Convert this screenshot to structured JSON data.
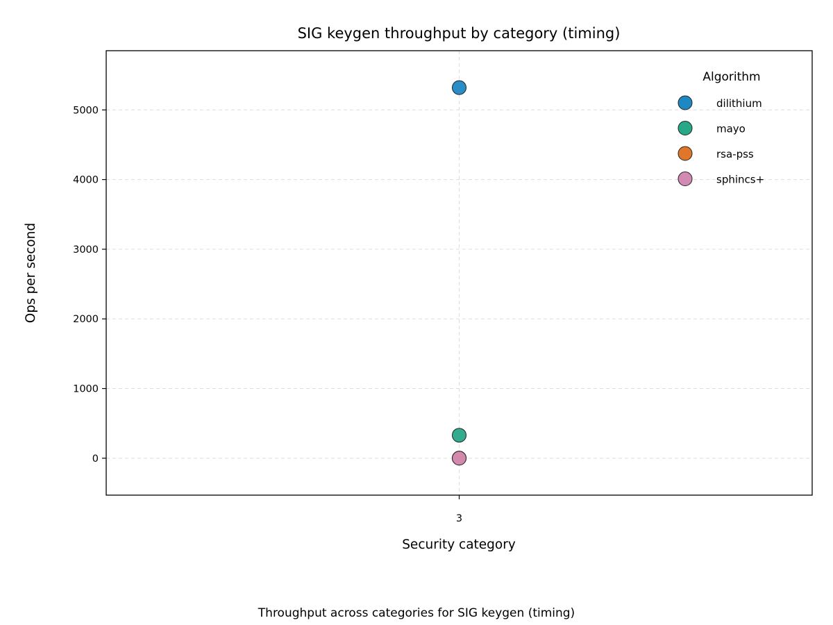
{
  "chart_data": {
    "type": "scatter",
    "title": "SIG keygen throughput by category (timing)",
    "xlabel": "Security category",
    "ylabel": "Ops per second",
    "caption": "Throughput across categories for SIG keygen (timing)",
    "categories": [
      "3"
    ],
    "ylim": [
      -530,
      5850
    ],
    "yticks": [
      0,
      1000,
      2000,
      3000,
      4000,
      5000
    ],
    "grid": true,
    "legend": {
      "title": "Algorithm",
      "placement": "top-right"
    },
    "series": [
      {
        "name": "dilithium",
        "color": "#1f88c3",
        "points": [
          {
            "x": "3",
            "y": 5320
          }
        ]
      },
      {
        "name": "mayo",
        "color": "#27a887",
        "points": [
          {
            "x": "3",
            "y": 330
          }
        ]
      },
      {
        "name": "rsa-pss",
        "color": "#e0762a",
        "points": [
          {
            "x": "3",
            "y": 2
          }
        ]
      },
      {
        "name": "sphincs+",
        "color": "#d28ab3",
        "points": [
          {
            "x": "3",
            "y": 1
          }
        ]
      }
    ]
  }
}
